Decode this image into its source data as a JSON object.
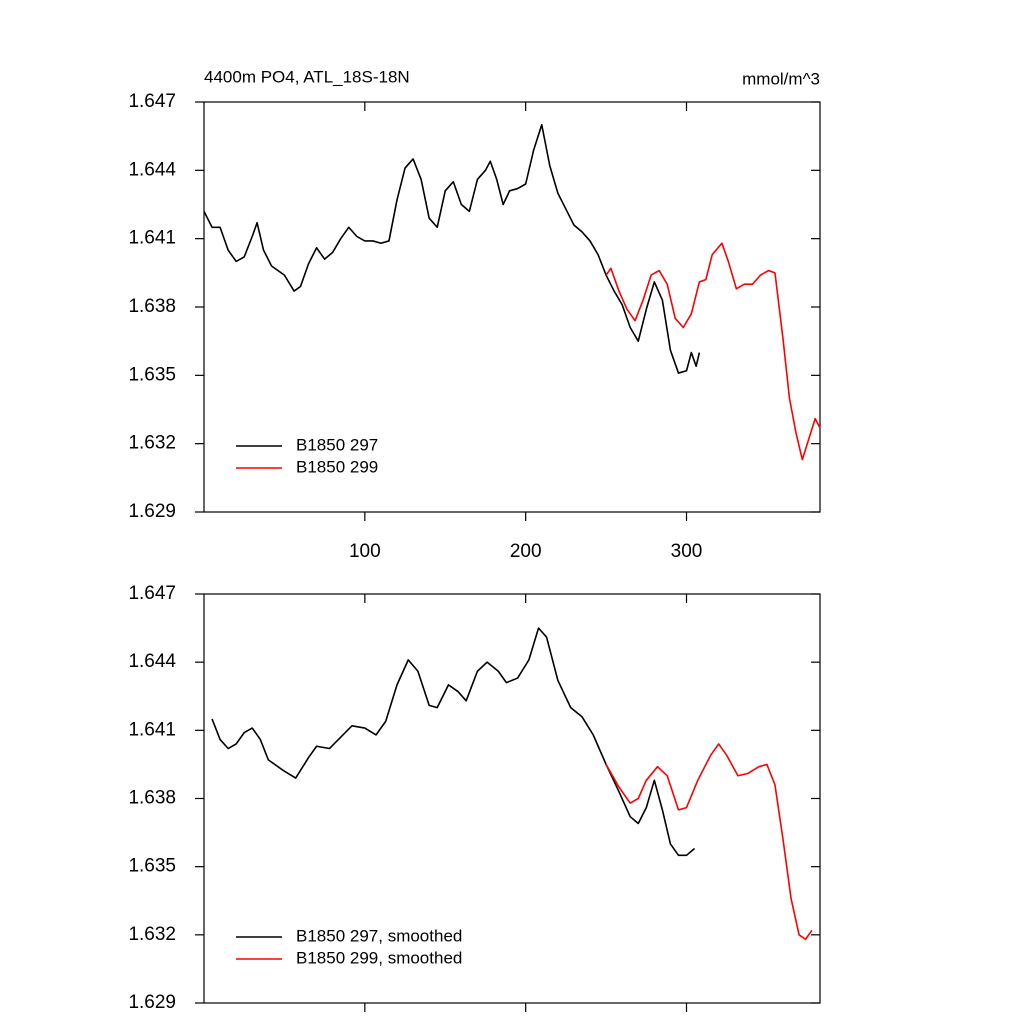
{
  "chart_data": [
    {
      "type": "line",
      "title": "4400m PO4, ATL_18S-18N",
      "units": "mmol/m^3",
      "xlim": [
        0,
        383
      ],
      "ylim": [
        1.629,
        1.647
      ],
      "xticks": [
        100,
        200,
        300
      ],
      "yticks": [
        1.629,
        1.632,
        1.635,
        1.638,
        1.641,
        1.644,
        1.647
      ],
      "xtick_labels": true,
      "legend": "lower left",
      "series": [
        {
          "name": "B1850 297",
          "color": "#000000",
          "x": [
            0,
            5,
            10,
            15,
            20,
            25,
            30,
            33,
            37,
            42,
            50,
            56,
            60,
            65,
            70,
            75,
            80,
            85,
            90,
            95,
            100,
            105,
            110,
            115,
            120,
            125,
            130,
            135,
            140,
            145,
            150,
            155,
            160,
            165,
            170,
            175,
            178,
            182,
            186,
            190,
            195,
            200,
            205,
            210,
            215,
            220,
            225,
            230,
            235,
            240,
            245,
            250,
            255,
            260,
            265,
            270,
            275,
            280,
            285,
            290,
            295,
            300,
            303,
            306,
            308
          ],
          "values": [
            1.6422,
            1.6415,
            1.6415,
            1.6405,
            1.64,
            1.6402,
            1.6411,
            1.6417,
            1.6405,
            1.6398,
            1.6394,
            1.6387,
            1.6389,
            1.6399,
            1.6406,
            1.6401,
            1.6404,
            1.641,
            1.6415,
            1.6411,
            1.6409,
            1.6409,
            1.6408,
            1.6409,
            1.6427,
            1.6441,
            1.6445,
            1.6436,
            1.6419,
            1.6415,
            1.6431,
            1.6435,
            1.6425,
            1.6422,
            1.6436,
            1.644,
            1.6444,
            1.6436,
            1.6425,
            1.6431,
            1.6432,
            1.6434,
            1.6449,
            1.646,
            1.6442,
            1.643,
            1.6423,
            1.6416,
            1.6413,
            1.6409,
            1.6403,
            1.6394,
            1.6387,
            1.6381,
            1.6371,
            1.6365,
            1.6379,
            1.6391,
            1.6383,
            1.6361,
            1.6351,
            1.6352,
            1.636,
            1.6354,
            1.636
          ]
        },
        {
          "name": "B1850 299",
          "color": "#ff0000",
          "x": [
            250,
            253,
            258,
            263,
            268,
            273,
            278,
            283,
            288,
            293,
            298,
            303,
            308,
            312,
            316,
            322,
            326,
            331,
            336,
            341,
            346,
            351,
            355,
            360,
            364,
            368,
            372,
            376,
            380,
            383
          ],
          "values": [
            1.6394,
            1.6397,
            1.6387,
            1.6379,
            1.6374,
            1.6383,
            1.6394,
            1.6396,
            1.639,
            1.6375,
            1.6371,
            1.6377,
            1.6391,
            1.6392,
            1.6403,
            1.6408,
            1.64,
            1.6388,
            1.639,
            1.639,
            1.6394,
            1.6396,
            1.6395,
            1.6366,
            1.634,
            1.6325,
            1.6313,
            1.6322,
            1.6331,
            1.6327
          ]
        }
      ]
    },
    {
      "type": "line",
      "xlim": [
        0,
        383
      ],
      "ylim": [
        1.629,
        1.647
      ],
      "xticks": [
        100,
        200,
        300
      ],
      "yticks": [
        1.629,
        1.632,
        1.635,
        1.638,
        1.641,
        1.644,
        1.647
      ],
      "xtick_labels": false,
      "legend": "lower left",
      "series": [
        {
          "name": "B1850 297, smoothed",
          "color": "#000000",
          "x": [
            5,
            10,
            15,
            20,
            25,
            30,
            35,
            40,
            50,
            57,
            65,
            70,
            78,
            85,
            92,
            100,
            107,
            113,
            120,
            127,
            133,
            140,
            145,
            152,
            158,
            163,
            170,
            176,
            183,
            188,
            195,
            202,
            208,
            213,
            220,
            228,
            235,
            242,
            250,
            258,
            265,
            270,
            275,
            280,
            285,
            290,
            295,
            300,
            305
          ],
          "values": [
            1.6415,
            1.6406,
            1.6402,
            1.6404,
            1.6409,
            1.6411,
            1.6406,
            1.6397,
            1.6392,
            1.6389,
            1.6398,
            1.6403,
            1.6402,
            1.6407,
            1.6412,
            1.6411,
            1.6408,
            1.6414,
            1.643,
            1.6441,
            1.6436,
            1.6421,
            1.642,
            1.643,
            1.6427,
            1.6423,
            1.6436,
            1.644,
            1.6436,
            1.6431,
            1.6433,
            1.6441,
            1.6455,
            1.6451,
            1.6432,
            1.642,
            1.6416,
            1.6408,
            1.6395,
            1.6383,
            1.6372,
            1.6369,
            1.6376,
            1.6388,
            1.6375,
            1.636,
            1.6355,
            1.6355,
            1.6358
          ]
        },
        {
          "name": "B1850 299, smoothed",
          "color": "#ff0000",
          "x": [
            250,
            258,
            265,
            270,
            275,
            282,
            288,
            295,
            300,
            307,
            315,
            320,
            325,
            332,
            338,
            345,
            350,
            355,
            360,
            365,
            370,
            374,
            378
          ],
          "values": [
            1.6395,
            1.6385,
            1.6378,
            1.638,
            1.6388,
            1.6394,
            1.639,
            1.6375,
            1.6376,
            1.6388,
            1.6399,
            1.6404,
            1.6399,
            1.639,
            1.6391,
            1.6394,
            1.6395,
            1.6386,
            1.6362,
            1.6336,
            1.632,
            1.6318,
            1.6322
          ]
        }
      ]
    }
  ]
}
